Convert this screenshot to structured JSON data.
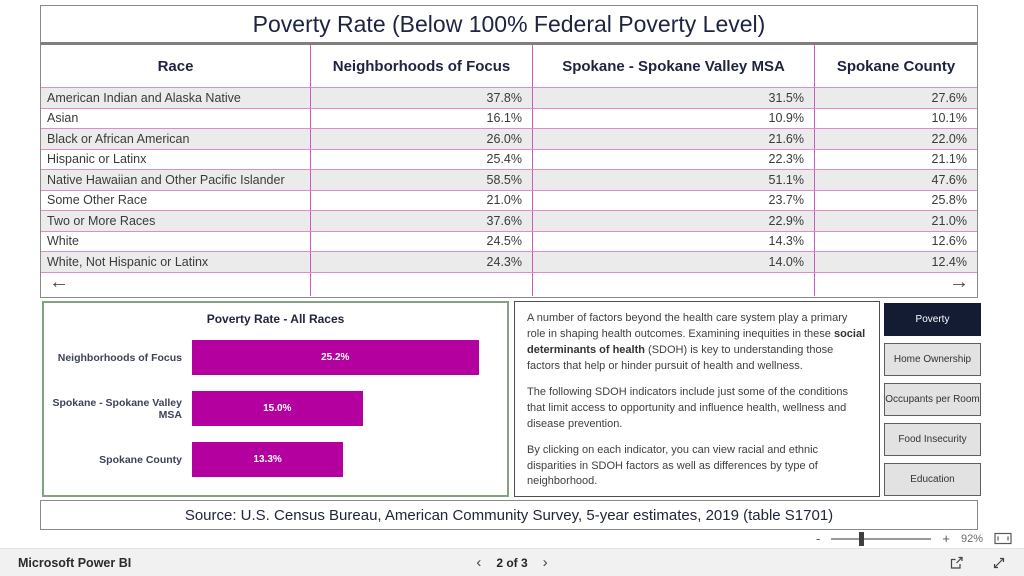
{
  "report": {
    "title": "Poverty Rate (Below 100% Federal Poverty Level)",
    "table": {
      "columns": [
        "Race",
        "Neighborhoods of Focus",
        "Spokane - Spokane Valley MSA",
        "Spokane County"
      ],
      "rows": [
        {
          "race": "American Indian and Alaska Native",
          "values": [
            "37.8%",
            "31.5%",
            "27.6%"
          ]
        },
        {
          "race": "Asian",
          "values": [
            "16.1%",
            "10.9%",
            "10.1%"
          ]
        },
        {
          "race": "Black or African American",
          "values": [
            "26.0%",
            "21.6%",
            "22.0%"
          ]
        },
        {
          "race": "Hispanic or Latinx",
          "values": [
            "25.4%",
            "22.3%",
            "21.1%"
          ]
        },
        {
          "race": "Native Hawaiian and Other Pacific Islander",
          "values": [
            "58.5%",
            "51.1%",
            "47.6%"
          ]
        },
        {
          "race": "Some Other Race",
          "values": [
            "21.0%",
            "23.7%",
            "25.8%"
          ]
        },
        {
          "race": "Two or More Races",
          "values": [
            "37.6%",
            "22.9%",
            "21.0%"
          ]
        },
        {
          "race": "White",
          "values": [
            "24.5%",
            "14.3%",
            "12.6%"
          ]
        },
        {
          "race": "White, Not Hispanic or Latinx",
          "values": [
            "24.3%",
            "14.0%",
            "12.4%"
          ]
        }
      ],
      "scroll_left_icon": "←",
      "scroll_right_icon": "→"
    },
    "sdoh_text": {
      "p1_before": "A number of factors beyond the health care system play a primary role in shaping health outcomes. Examining inequities in these ",
      "p1_bold": "social determinants of health",
      "p1_after": " (SDOH) is key to understanding those factors that help or hinder pursuit of health and wellness.",
      "p2": "The following SDOH indicators include just some of the conditions that limit access to opportunity and influence health, wellness and disease prevention.",
      "p3": "By clicking on each indicator, you can view racial and ethnic disparities in SDOH factors as well as differences by type of neighborhood."
    },
    "nav_buttons": [
      {
        "label": "Poverty",
        "active": true
      },
      {
        "label": "Home Ownership",
        "active": false
      },
      {
        "label": "Occupants per Room",
        "active": false
      },
      {
        "label": "Food Insecurity",
        "active": false
      },
      {
        "label": "Education",
        "active": false
      }
    ],
    "source": "Source: U.S. Census Bureau, American Community Survey, 5-year estimates, 2019 (table S1701)"
  },
  "chart_data": {
    "type": "bar",
    "orientation": "horizontal",
    "title": "Poverty Rate - All Races",
    "categories": [
      "Neighborhoods of Focus",
      "Spokane - Spokane Valley MSA",
      "Spokane County"
    ],
    "values": [
      25.2,
      15.0,
      13.3
    ],
    "value_labels": [
      "25.2%",
      "15.0%",
      "13.3%"
    ],
    "bar_color": "#b3009e",
    "xmax": 27,
    "legend": "none",
    "grid": "off"
  },
  "zoom_bar": {
    "minus": "-",
    "plus": "+",
    "level": "92%"
  },
  "footer": {
    "brand": "Microsoft Power BI",
    "prev_icon": "‹",
    "page_label": "2 of 3",
    "next_icon": "›"
  },
  "colors": {
    "accent_magenta": "#b3009e",
    "grid_pink": "#cc5cbb",
    "header_navy": "#1e2440",
    "active_button_navy": "#141c33",
    "chart_border_green": "#83a183",
    "row_stripe": "#ebebeb"
  }
}
